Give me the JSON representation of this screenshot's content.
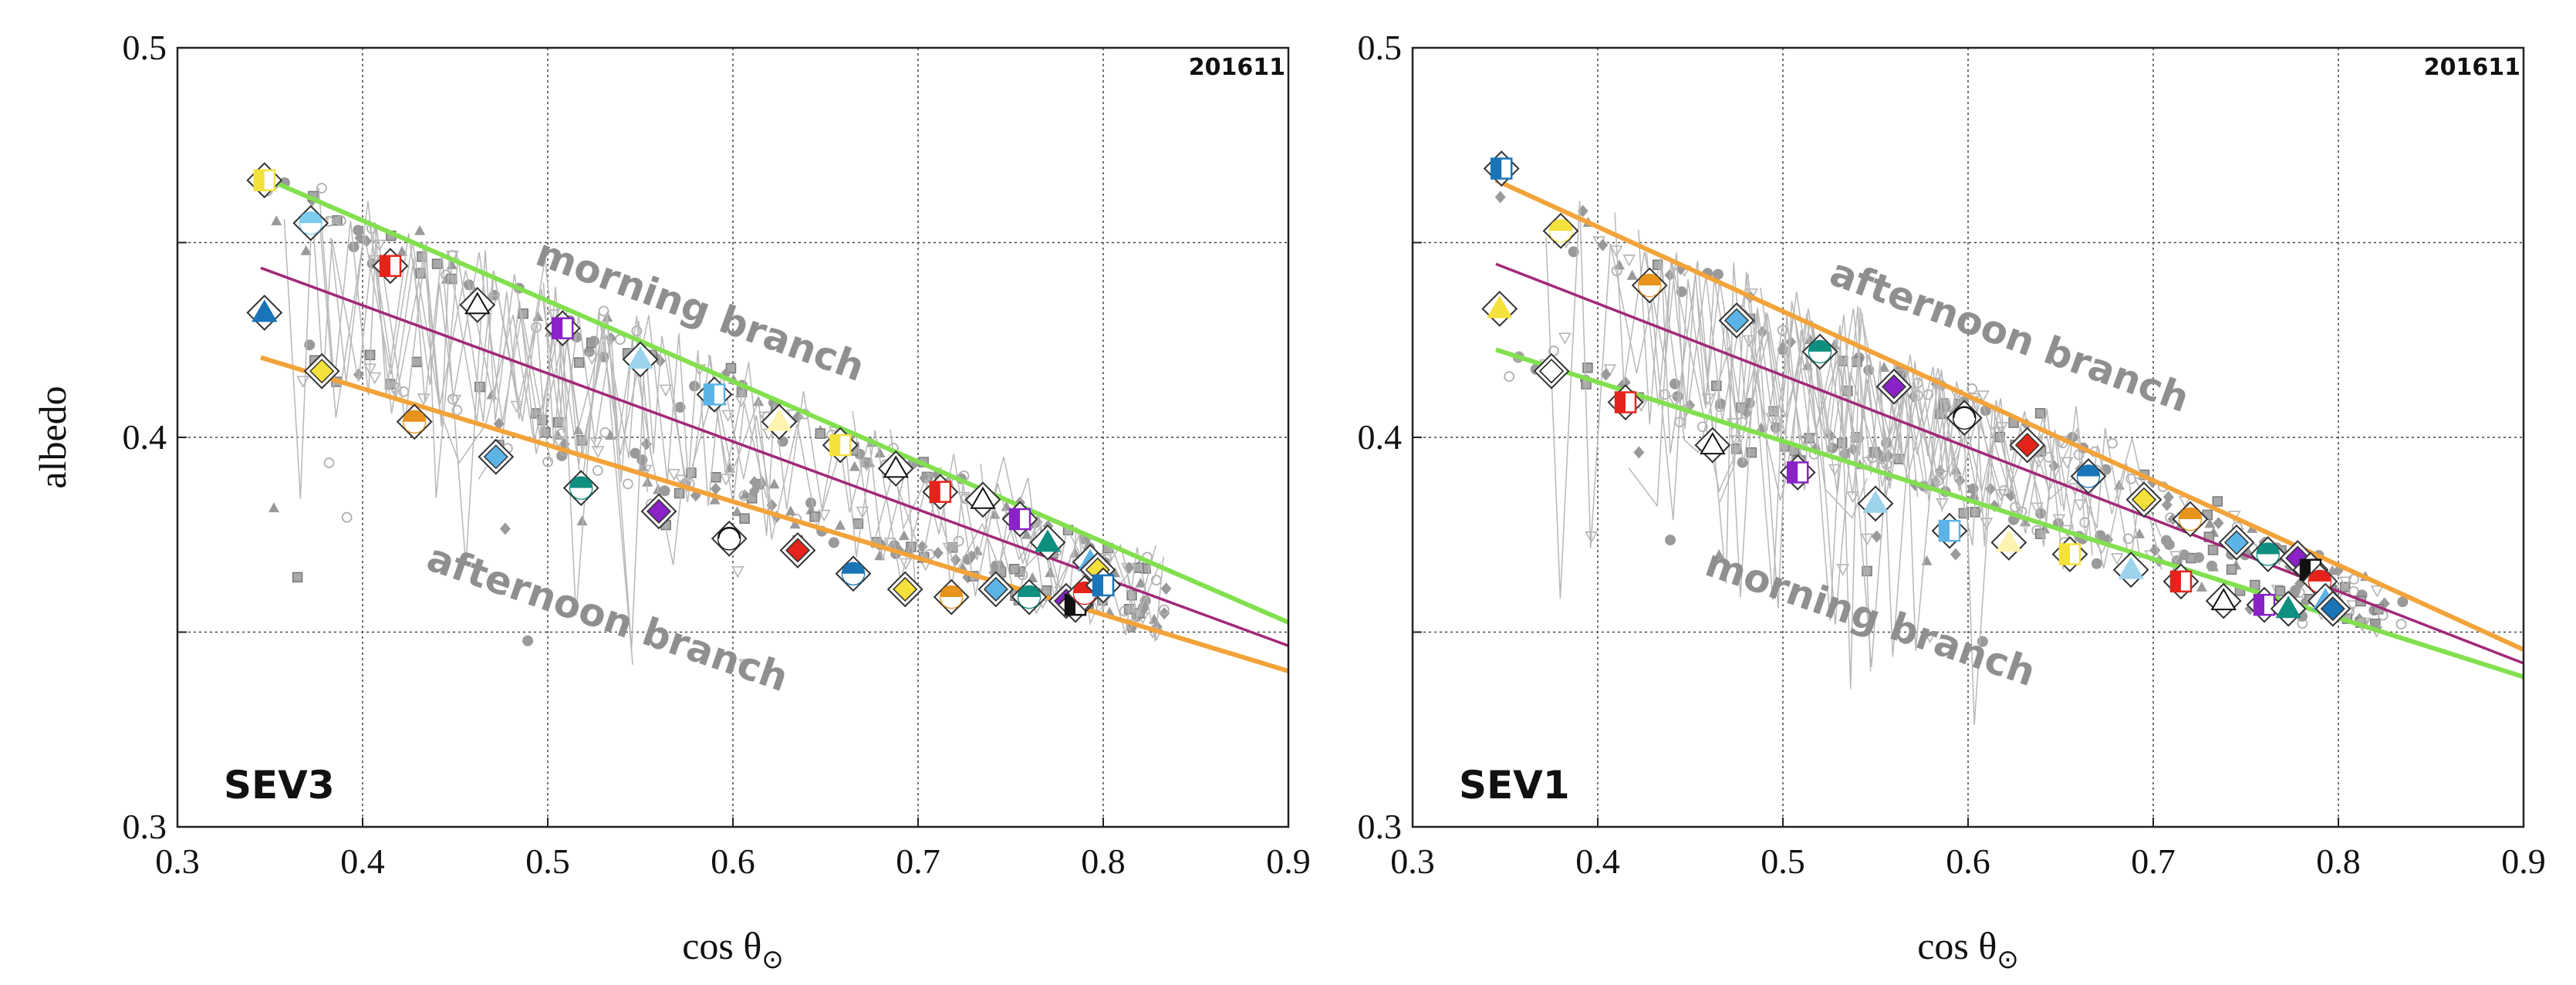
{
  "chart_data": [
    {
      "type": "scatter",
      "panel": "left",
      "station": "SEV3",
      "period": "201611",
      "xlabel_main": "cos θ",
      "xlabel_sub": "⊙",
      "ylabel": "albedo",
      "xlim": [
        0.3,
        0.9
      ],
      "ylim": [
        0.3,
        0.5
      ],
      "xticks": [
        0.3,
        0.4,
        0.5,
        0.6,
        0.7,
        0.8,
        0.9
      ],
      "xtick_labels": [
        "0.3",
        "0.4",
        "0.5",
        "0.6",
        "0.7",
        "0.8",
        "0.9"
      ],
      "yticks": [
        0.3,
        0.35,
        0.4,
        0.45,
        0.5
      ],
      "ytick_labels": [
        "0.3",
        "",
        "0.4",
        "",
        "0.5"
      ],
      "grid": true,
      "annotations": [
        {
          "text": "morning branch",
          "x": 0.58,
          "y": 0.4295,
          "angle": 20
        },
        {
          "text": "afternoon branch",
          "x": 0.53,
          "y": 0.3505,
          "angle": 19
        }
      ],
      "fits": [
        {
          "name": "morning fit",
          "color": "#82e04f",
          "x": [
            0.345,
            0.9
          ],
          "y": [
            0.467,
            0.3525
          ]
        },
        {
          "name": "overall fit",
          "color": "#a3287a",
          "x": [
            0.345,
            0.9
          ],
          "y": [
            0.4435,
            0.3465
          ]
        },
        {
          "name": "afternoon fit",
          "color": "#f2a33a",
          "x": [
            0.345,
            0.9
          ],
          "y": [
            0.4205,
            0.34
          ]
        }
      ],
      "daily_means": [
        {
          "x": 0.347,
          "y": 0.466,
          "color": "#f5e13b"
        },
        {
          "x": 0.372,
          "y": 0.455,
          "color": "#7ecbf0"
        },
        {
          "x": 0.347,
          "y": 0.432,
          "color": "#1a75b8"
        },
        {
          "x": 0.378,
          "y": 0.417,
          "color": "#f5e13b"
        },
        {
          "x": 0.415,
          "y": 0.444,
          "color": "#e4241b"
        },
        {
          "x": 0.428,
          "y": 0.404,
          "color": "#e8931c"
        },
        {
          "x": 0.462,
          "y": 0.434,
          "color": "#ffffff"
        },
        {
          "x": 0.472,
          "y": 0.395,
          "color": "#5cb3e6"
        },
        {
          "x": 0.508,
          "y": 0.428,
          "color": "#8a22c7"
        },
        {
          "x": 0.518,
          "y": 0.387,
          "color": "#0e8f80"
        },
        {
          "x": 0.55,
          "y": 0.42,
          "color": "#9ed3ed"
        },
        {
          "x": 0.56,
          "y": 0.381,
          "color": "#8a22c7"
        },
        {
          "x": 0.59,
          "y": 0.411,
          "color": "#5cb3e6"
        },
        {
          "x": 0.598,
          "y": 0.374,
          "color": "#ffffff"
        },
        {
          "x": 0.625,
          "y": 0.404,
          "color": "#fff3b0"
        },
        {
          "x": 0.635,
          "y": 0.371,
          "color": "#e4241b"
        },
        {
          "x": 0.658,
          "y": 0.398,
          "color": "#f5e13b"
        },
        {
          "x": 0.665,
          "y": 0.365,
          "color": "#1a75b8"
        },
        {
          "x": 0.688,
          "y": 0.392,
          "color": "#ffffff"
        },
        {
          "x": 0.693,
          "y": 0.361,
          "color": "#f5e13b"
        },
        {
          "x": 0.712,
          "y": 0.386,
          "color": "#e4241b"
        },
        {
          "x": 0.718,
          "y": 0.359,
          "color": "#e8931c"
        },
        {
          "x": 0.735,
          "y": 0.384,
          "color": "#ffffff"
        },
        {
          "x": 0.742,
          "y": 0.361,
          "color": "#5cb3e6"
        },
        {
          "x": 0.755,
          "y": 0.379,
          "color": "#8a22c7"
        },
        {
          "x": 0.76,
          "y": 0.359,
          "color": "#0e8f80"
        },
        {
          "x": 0.77,
          "y": 0.373,
          "color": "#0e8f80"
        },
        {
          "x": 0.78,
          "y": 0.358,
          "color": "#8a22c7"
        },
        {
          "x": 0.785,
          "y": 0.357,
          "color": "#111111"
        },
        {
          "x": 0.79,
          "y": 0.36,
          "color": "#e4241b"
        },
        {
          "x": 0.793,
          "y": 0.368,
          "color": "#5cb3e6"
        },
        {
          "x": 0.797,
          "y": 0.366,
          "color": "#f5e13b"
        },
        {
          "x": 0.8,
          "y": 0.362,
          "color": "#1a75b8"
        }
      ]
    },
    {
      "type": "scatter",
      "panel": "right",
      "station": "SEV1",
      "period": "201611",
      "xlabel_main": "cos θ",
      "xlabel_sub": "⊙",
      "ylabel": "",
      "xlim": [
        0.3,
        0.9
      ],
      "ylim": [
        0.3,
        0.5
      ],
      "xticks": [
        0.3,
        0.4,
        0.5,
        0.6,
        0.7,
        0.8,
        0.9
      ],
      "xtick_labels": [
        "0.3",
        "0.4",
        "0.5",
        "0.6",
        "0.7",
        "0.8",
        "0.9"
      ],
      "yticks": [
        0.3,
        0.35,
        0.4,
        0.45,
        0.5
      ],
      "ytick_labels": [
        "0.3",
        "",
        "0.4",
        "",
        "0.5"
      ],
      "grid": true,
      "annotations": [
        {
          "text": "afternoon branch",
          "x": 0.62,
          "y": 0.423,
          "angle": 20
        },
        {
          "text": "morning branch",
          "x": 0.545,
          "y": 0.3505,
          "angle": 19
        }
      ],
      "fits": [
        {
          "name": "afternoon fit",
          "color": "#f2a33a",
          "x": [
            0.345,
            0.9
          ],
          "y": [
            0.466,
            0.3455
          ]
        },
        {
          "name": "overall fit",
          "color": "#a3287a",
          "x": [
            0.345,
            0.9
          ],
          "y": [
            0.4445,
            0.342
          ]
        },
        {
          "name": "morning fit",
          "color": "#82e04f",
          "x": [
            0.345,
            0.9
          ],
          "y": [
            0.4225,
            0.3385
          ]
        }
      ],
      "daily_means": [
        {
          "x": 0.348,
          "y": 0.469,
          "color": "#1a75b8"
        },
        {
          "x": 0.38,
          "y": 0.453,
          "color": "#f5e13b"
        },
        {
          "x": 0.347,
          "y": 0.433,
          "color": "#f5e13b"
        },
        {
          "x": 0.375,
          "y": 0.417,
          "color": "#ffffff"
        },
        {
          "x": 0.415,
          "y": 0.409,
          "color": "#e4241b"
        },
        {
          "x": 0.428,
          "y": 0.439,
          "color": "#e8931c"
        },
        {
          "x": 0.462,
          "y": 0.398,
          "color": "#ffffff"
        },
        {
          "x": 0.475,
          "y": 0.43,
          "color": "#5cb3e6"
        },
        {
          "x": 0.508,
          "y": 0.391,
          "color": "#8a22c7"
        },
        {
          "x": 0.52,
          "y": 0.422,
          "color": "#0e8f80"
        },
        {
          "x": 0.55,
          "y": 0.383,
          "color": "#9ed3ed"
        },
        {
          "x": 0.56,
          "y": 0.413,
          "color": "#8a22c7"
        },
        {
          "x": 0.59,
          "y": 0.376,
          "color": "#5cb3e6"
        },
        {
          "x": 0.598,
          "y": 0.405,
          "color": "#ffffff"
        },
        {
          "x": 0.622,
          "y": 0.373,
          "color": "#fff3b0"
        },
        {
          "x": 0.632,
          "y": 0.398,
          "color": "#e4241b"
        },
        {
          "x": 0.655,
          "y": 0.37,
          "color": "#f5e13b"
        },
        {
          "x": 0.665,
          "y": 0.39,
          "color": "#1a75b8"
        },
        {
          "x": 0.688,
          "y": 0.366,
          "color": "#9ed3ed"
        },
        {
          "x": 0.695,
          "y": 0.384,
          "color": "#f5e13b"
        },
        {
          "x": 0.715,
          "y": 0.363,
          "color": "#e4241b"
        },
        {
          "x": 0.72,
          "y": 0.379,
          "color": "#e8931c"
        },
        {
          "x": 0.738,
          "y": 0.358,
          "color": "#ffffff"
        },
        {
          "x": 0.745,
          "y": 0.373,
          "color": "#5cb3e6"
        },
        {
          "x": 0.76,
          "y": 0.357,
          "color": "#8a22c7"
        },
        {
          "x": 0.762,
          "y": 0.37,
          "color": "#0e8f80"
        },
        {
          "x": 0.773,
          "y": 0.356,
          "color": "#0e8f80"
        },
        {
          "x": 0.778,
          "y": 0.369,
          "color": "#8a22c7"
        },
        {
          "x": 0.785,
          "y": 0.366,
          "color": "#111111"
        },
        {
          "x": 0.79,
          "y": 0.363,
          "color": "#e4241b"
        },
        {
          "x": 0.793,
          "y": 0.358,
          "color": "#5cb3e6"
        },
        {
          "x": 0.797,
          "y": 0.356,
          "color": "#1a75b8"
        }
      ]
    }
  ]
}
